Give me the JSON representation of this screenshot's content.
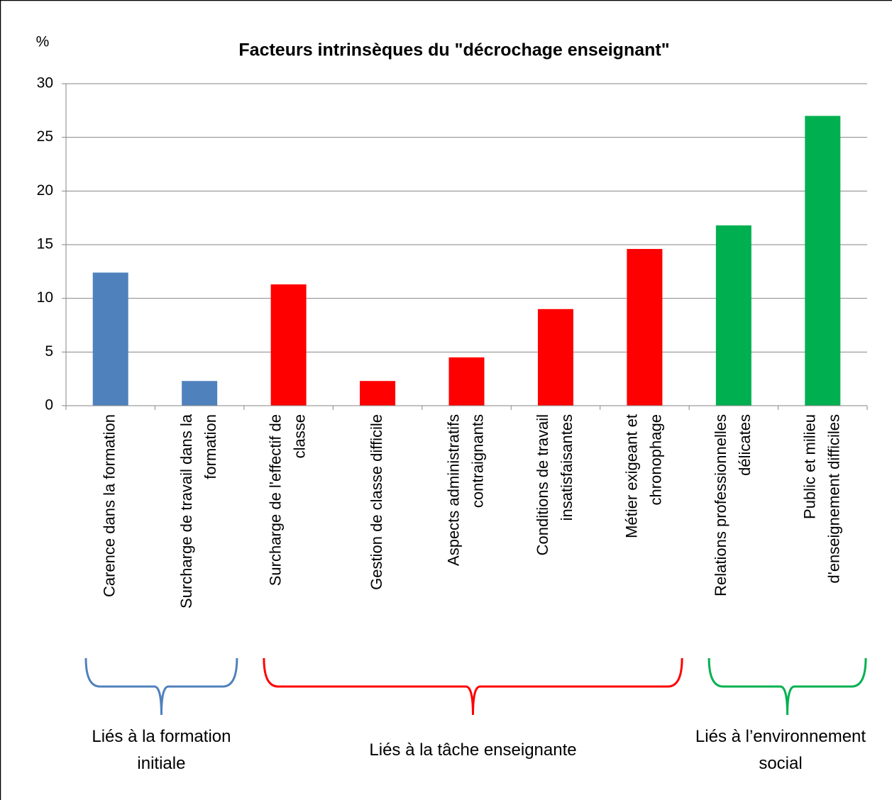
{
  "chart_data": {
    "type": "bar",
    "title": "Facteurs intrinsèques du \"décrochage enseignant\"",
    "y_label": "%",
    "categories": [
      "Carence dans la formation",
      "Surcharge de travail dans la\nformation",
      "Surcharge de l'effectif de\nclasse",
      "Gestion de classe difficile",
      "Aspects administratifs\ncontraignants",
      "Conditions de travail\ninsatisfaisantes",
      "Métier exigeant et\nchronophage",
      "Relations professionnelles\ndélicates",
      "Public et milieu\nd'enseignement difficiles"
    ],
    "values": [
      12.4,
      2.3,
      11.3,
      2.3,
      4.5,
      9.0,
      14.6,
      16.8,
      27.0
    ],
    "colors": [
      "#4f81bd",
      "#4f81bd",
      "#ff0000",
      "#ff0000",
      "#ff0000",
      "#ff0000",
      "#ff0000",
      "#00b050",
      "#00b050"
    ],
    "ylim": [
      0,
      30
    ],
    "yticks": [
      0,
      5,
      10,
      15,
      20,
      25,
      30
    ],
    "grid": true,
    "groups": [
      {
        "label": "Liés à la formation\ninitiale",
        "start": 0,
        "end": 1,
        "color": "#4f81bd"
      },
      {
        "label": "Liés à la tâche enseignante",
        "start": 2,
        "end": 6,
        "color": "#ff0000"
      },
      {
        "label": "Liés à l’environnement\nsocial",
        "start": 7,
        "end": 8,
        "color": "#00b050"
      }
    ]
  }
}
